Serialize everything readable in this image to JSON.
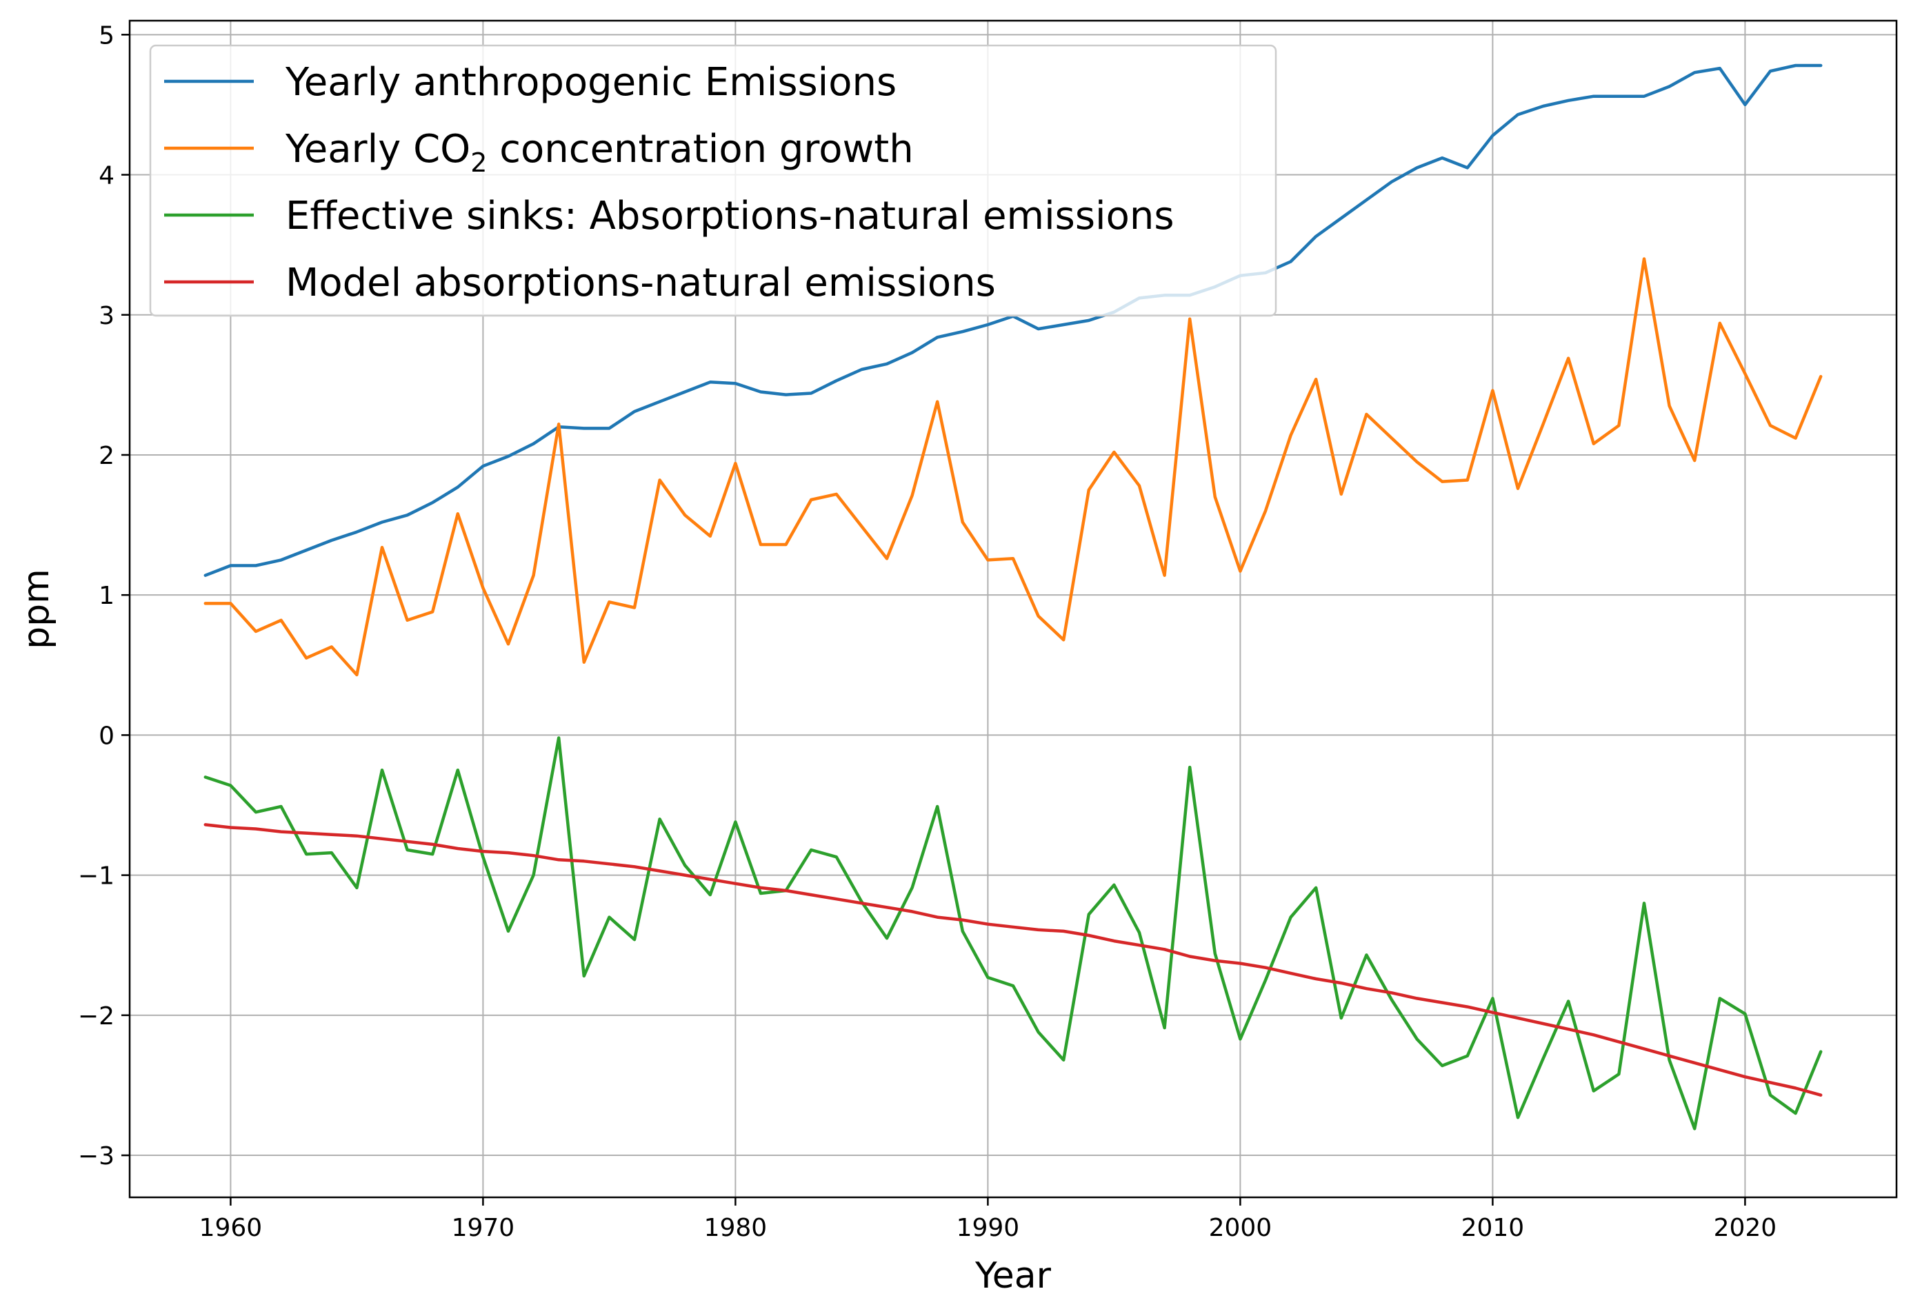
{
  "chart_data": {
    "type": "line",
    "title": "",
    "xlabel": "Year",
    "ylabel": "ppm",
    "xlim": [
      1956,
      2026
    ],
    "ylim": [
      -3.3,
      5.1
    ],
    "xticks": [
      1960,
      1970,
      1980,
      1990,
      2000,
      2010,
      2020
    ],
    "yticks": [
      -3,
      -2,
      -1,
      0,
      1,
      2,
      3,
      4,
      5
    ],
    "ytick_labels": [
      "−3",
      "−2",
      "−1",
      "0",
      "1",
      "2",
      "3",
      "4",
      "5"
    ],
    "grid": true,
    "legend": "top-left",
    "x": [
      1959,
      1960,
      1961,
      1962,
      1963,
      1964,
      1965,
      1966,
      1967,
      1968,
      1969,
      1970,
      1971,
      1972,
      1973,
      1974,
      1975,
      1976,
      1977,
      1978,
      1979,
      1980,
      1981,
      1982,
      1983,
      1984,
      1985,
      1986,
      1987,
      1988,
      1989,
      1990,
      1991,
      1992,
      1993,
      1994,
      1995,
      1996,
      1997,
      1998,
      1999,
      2000,
      2001,
      2002,
      2003,
      2004,
      2005,
      2006,
      2007,
      2008,
      2009,
      2010,
      2011,
      2012,
      2013,
      2014,
      2015,
      2016,
      2017,
      2018,
      2019,
      2020,
      2021,
      2022,
      2023
    ],
    "series": [
      {
        "name": "Yearly anthropogenic Emissions",
        "color": "#1f77b4",
        "values": [
          1.14,
          1.21,
          1.21,
          1.25,
          1.32,
          1.39,
          1.45,
          1.52,
          1.57,
          1.66,
          1.77,
          1.92,
          1.99,
          2.08,
          2.2,
          2.19,
          2.19,
          2.31,
          2.38,
          2.45,
          2.52,
          2.51,
          2.45,
          2.43,
          2.44,
          2.53,
          2.61,
          2.65,
          2.73,
          2.84,
          2.88,
          2.93,
          2.99,
          2.9,
          2.93,
          2.96,
          3.02,
          3.12,
          3.14,
          3.14,
          3.2,
          3.28,
          3.3,
          3.38,
          3.56,
          3.69,
          3.82,
          3.95,
          4.05,
          4.12,
          4.05,
          4.28,
          4.43,
          4.49,
          4.53,
          4.56,
          4.56,
          4.56,
          4.63,
          4.73,
          4.76,
          4.5,
          4.74,
          4.78,
          4.78
        ]
      },
      {
        "name": "Yearly CO₂ concentration growth",
        "name_main": "Yearly CO",
        "name_sub": "2",
        "name_rest": " concentration growth",
        "color": "#ff7f0e",
        "values": [
          0.94,
          0.94,
          0.74,
          0.82,
          0.55,
          0.63,
          0.43,
          1.34,
          0.82,
          0.88,
          1.58,
          1.05,
          0.65,
          1.14,
          2.22,
          0.52,
          0.95,
          0.91,
          1.82,
          1.57,
          1.42,
          1.94,
          1.36,
          1.36,
          1.68,
          1.72,
          1.49,
          1.26,
          1.71,
          2.38,
          1.52,
          1.25,
          1.26,
          0.85,
          0.68,
          1.75,
          2.02,
          1.78,
          1.14,
          2.97,
          1.7,
          1.17,
          1.6,
          2.14,
          2.54,
          1.72,
          2.29,
          2.12,
          1.95,
          1.81,
          1.82,
          2.46,
          1.76,
          2.22,
          2.69,
          2.08,
          2.21,
          3.4,
          2.35,
          1.96,
          2.94,
          2.58,
          2.21,
          2.12,
          2.56
        ]
      },
      {
        "name": "Effective sinks: Absorptions-natural emissions",
        "color": "#2ca02c",
        "values": [
          -0.3,
          -0.36,
          -0.55,
          -0.51,
          -0.85,
          -0.84,
          -1.09,
          -0.25,
          -0.82,
          -0.85,
          -0.25,
          -0.87,
          -1.4,
          -1.0,
          -0.02,
          -1.72,
          -1.3,
          -1.46,
          -0.6,
          -0.93,
          -1.14,
          -0.62,
          -1.13,
          -1.11,
          -0.82,
          -0.87,
          -1.19,
          -1.45,
          -1.09,
          -0.51,
          -1.4,
          -1.73,
          -1.79,
          -2.12,
          -2.32,
          -1.28,
          -1.07,
          -1.41,
          -2.09,
          -0.23,
          -1.56,
          -2.17,
          -1.75,
          -1.3,
          -1.09,
          -2.02,
          -1.57,
          -1.89,
          -2.17,
          -2.36,
          -2.29,
          -1.88,
          -2.73,
          -2.31,
          -1.9,
          -2.54,
          -2.42,
          -1.2,
          -2.32,
          -2.81,
          -1.88,
          -1.99,
          -2.57,
          -2.7,
          -2.26
        ]
      },
      {
        "name": "Model absorptions-natural emissions",
        "color": "#d62728",
        "values": [
          -0.64,
          -0.66,
          -0.67,
          -0.69,
          -0.7,
          -0.71,
          -0.72,
          -0.74,
          -0.76,
          -0.78,
          -0.81,
          -0.83,
          -0.84,
          -0.86,
          -0.89,
          -0.9,
          -0.92,
          -0.94,
          -0.97,
          -1.0,
          -1.03,
          -1.06,
          -1.09,
          -1.11,
          -1.14,
          -1.17,
          -1.2,
          -1.23,
          -1.26,
          -1.3,
          -1.32,
          -1.35,
          -1.37,
          -1.39,
          -1.4,
          -1.43,
          -1.47,
          -1.5,
          -1.53,
          -1.58,
          -1.61,
          -1.63,
          -1.66,
          -1.7,
          -1.74,
          -1.77,
          -1.81,
          -1.84,
          -1.88,
          -1.91,
          -1.94,
          -1.98,
          -2.02,
          -2.06,
          -2.1,
          -2.14,
          -2.19,
          -2.24,
          -2.29,
          -2.34,
          -2.39,
          -2.44,
          -2.48,
          -2.52,
          -2.57
        ]
      }
    ]
  }
}
